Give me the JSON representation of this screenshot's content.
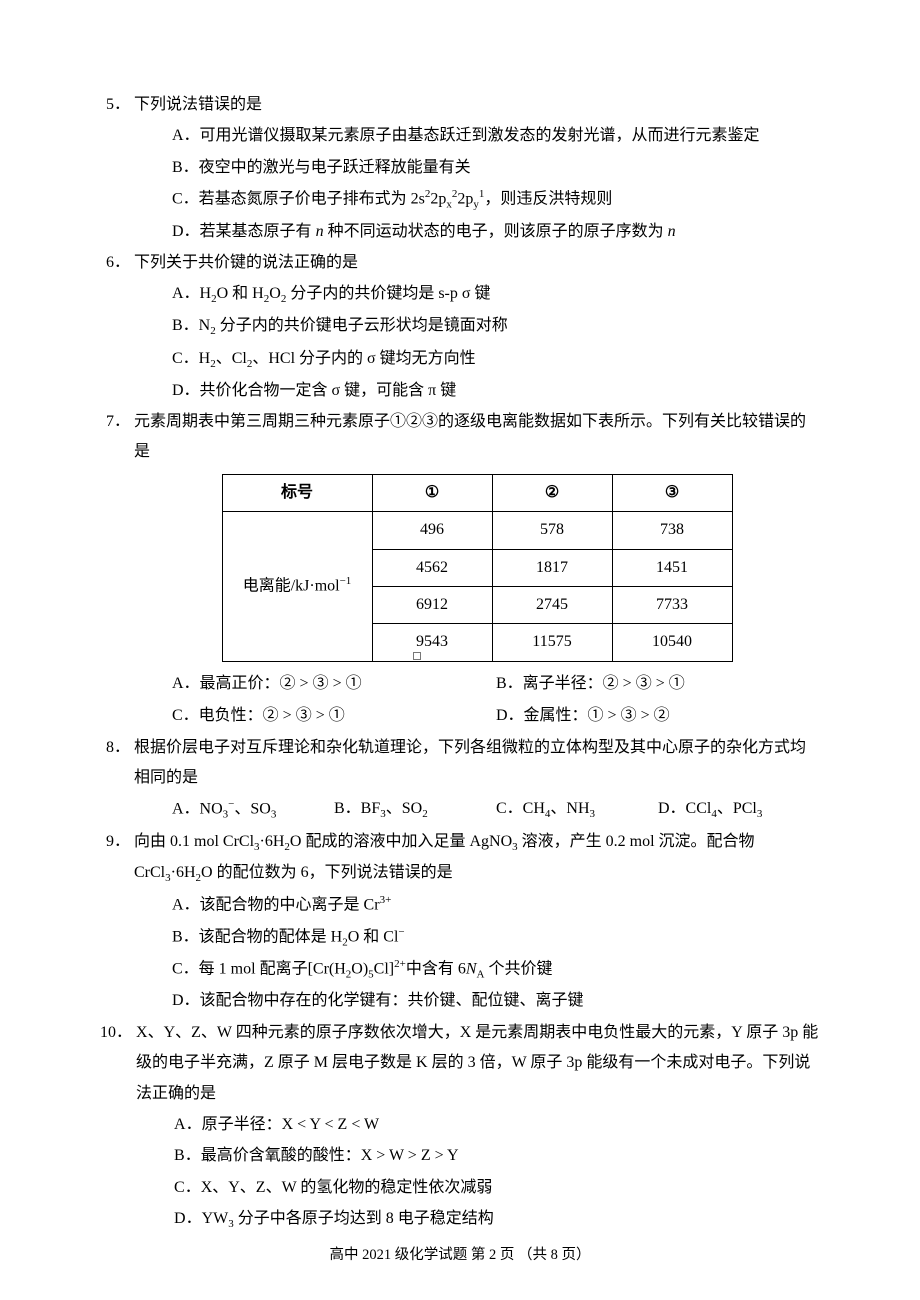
{
  "q5": {
    "num": "5．",
    "stem": "下列说法错误的是",
    "A": "A．可用光谱仪摄取某元素原子由基态跃迁到激发态的发射光谱，从而进行元素鉴定",
    "B": "B．夜空中的激光与电子跃迁释放能量有关",
    "C_pre": "C．若基态氮原子价电子排布式为 2s",
    "C_post": "，则违反洪特规则",
    "D_1": "D．若某基态原子有 ",
    "D_2": " 种不同运动状态的电子，则该原子的原子序数为 "
  },
  "q6": {
    "num": "6．",
    "stem": "下列关于共价键的说法正确的是",
    "A_pre": "A．H",
    "A_mid": "O 和 H",
    "A_mid2": "O",
    "A_post": " 分子内的共价键均是 s-p σ 键",
    "B_pre": "B．N",
    "B_post": " 分子内的共价键电子云形状均是镜面对称",
    "C_pre": "C．H",
    "C_mid": "、Cl",
    "C_post": "、HCl 分子内的 σ 键均无方向性",
    "D": "D．共价化合物一定含 σ 键，可能含 π 键"
  },
  "q7": {
    "num": "7．",
    "stem": "元素周期表中第三周期三种元素原子①②③的逐级电离能数据如下表所示。下列有关比较错误的是",
    "table": {
      "header": [
        "标号",
        "①",
        "②",
        "③"
      ],
      "row_label": "电离能/kJ·mol",
      "rows": [
        [
          "496",
          "578",
          "738"
        ],
        [
          "4562",
          "1817",
          "1451"
        ],
        [
          "6912",
          "2745",
          "7733"
        ],
        [
          "9543",
          "11575",
          "10540"
        ]
      ]
    },
    "A": "A．最高正价：② > ③ > ①",
    "B": "B．离子半径：② > ③ > ①",
    "C": "C．电负性：② > ③ > ①",
    "D": "D．金属性：① > ③ > ②"
  },
  "q8": {
    "num": "8．",
    "stem": "根据价层电子对互斥理论和杂化轨道理论，下列各组微粒的立体构型及其中心原子的杂化方式均相同的是",
    "A_pre": "A．NO",
    "A_post": "、SO",
    "B_pre": "B．BF",
    "B_post": "、SO",
    "C_pre": "C．CH",
    "C_post": "、NH",
    "D_pre": "D．CCl",
    "D_post": "、PCl"
  },
  "q9": {
    "num": "9．",
    "stem_1": "向由 0.1 mol CrCl",
    "stem_2": "·6H",
    "stem_3": "O 配成的溶液中加入足量 AgNO",
    "stem_4": " 溶液，产生 0.2 mol 沉淀。配合物 CrCl",
    "stem_5": "·6H",
    "stem_6": "O 的配位数为 6，下列说法错误的是",
    "A_pre": "A．该配合物的中心离子是 Cr",
    "B_pre": "B．该配合物的配体是 H",
    "B_post": "O 和 Cl",
    "C_pre": "C．每 1 mol 配离子[Cr(H",
    "C_mid": "O)",
    "C_mid2": "Cl]",
    "C_post": "中含有 6",
    "C_end": " 个共价键",
    "D": "D．该配合物中存在的化学键有：共价键、配位键、离子键"
  },
  "q10": {
    "num": "10．",
    "stem": "X、Y、Z、W 四种元素的原子序数依次增大，X 是元素周期表中电负性最大的元素，Y 原子 3p 能级的电子半充满，Z 原子 M 层电子数是 K 层的 3 倍，W 原子 3p 能级有一个未成对电子。下列说法正确的是",
    "A": "A．原子半径：X < Y < Z < W",
    "B": "B．最高价含氧酸的酸性：X > W > Z > Y",
    "C": "C．X、Y、Z、W 的氢化物的稳定性依次减弱",
    "D_pre": "D．YW",
    "D_post": " 分子中各原子均达到 8 电子稳定结构"
  },
  "footer": "高中 2021 级化学试题  第  2  页 （共  8  页）"
}
